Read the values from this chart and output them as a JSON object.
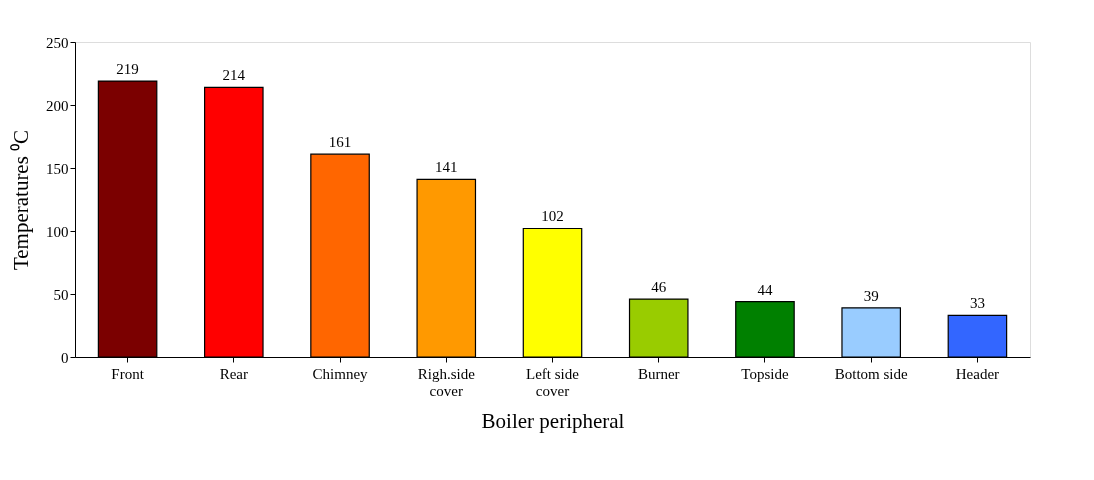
{
  "chart_data": {
    "type": "bar",
    "xlabel": "Boiler peripheral",
    "ylabel": "Temperatures ⁰C",
    "categories": [
      "Front",
      "Rear",
      "Chimney",
      "Righ.side cover",
      "Left side cover",
      "Burner",
      "Topside",
      "Bottom side",
      "Header"
    ],
    "values": [
      219,
      214,
      161,
      141,
      102,
      46,
      44,
      39,
      33
    ],
    "colors": [
      "#7b0000",
      "#ff0000",
      "#ff6600",
      "#ff9900",
      "#ffff00",
      "#99cc00",
      "#008000",
      "#99ccff",
      "#3366ff"
    ],
    "ylim": [
      0,
      250
    ],
    "yticks": [
      0,
      50,
      100,
      150,
      200,
      250
    ],
    "grid": false,
    "data_labels": true
  }
}
